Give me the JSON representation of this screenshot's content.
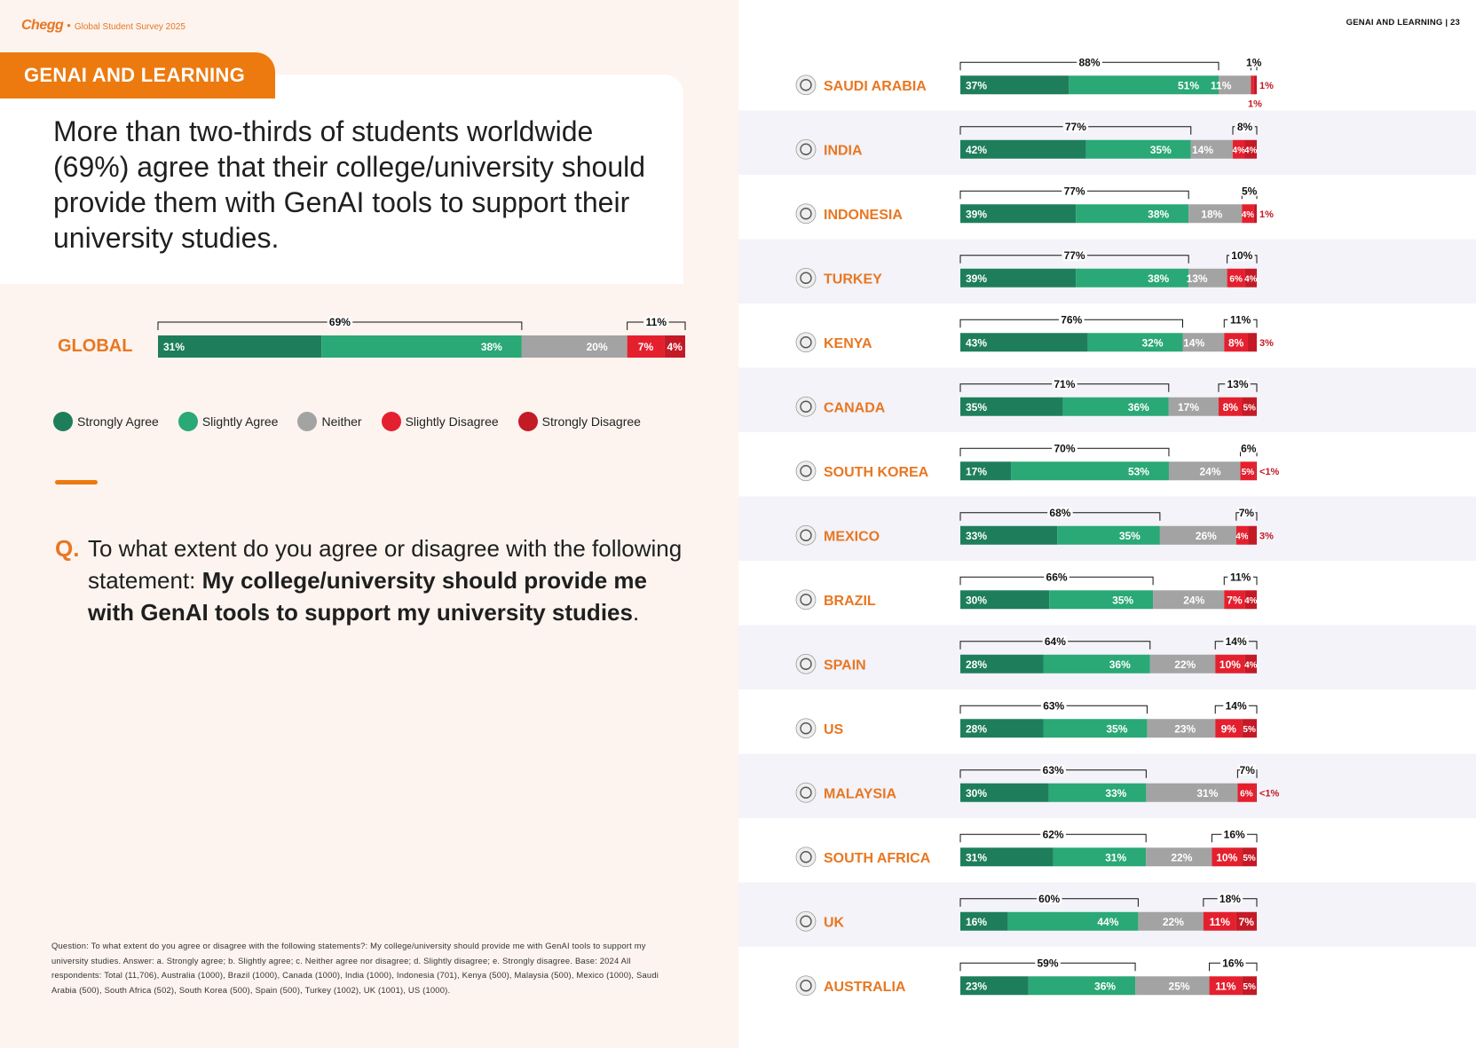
{
  "brand": {
    "logo": "Chegg",
    "separator": "•",
    "survey": "Global Student Survey 2025"
  },
  "section_label": "GENAI AND LEARNING",
  "page_header": {
    "section": "GENAI AND LEARNING",
    "divider": "|",
    "page": "23"
  },
  "headline": "More than two-thirds of students worldwide (69%) agree that their college/university should provide them with GenAI tools to support their university studies.",
  "legend": [
    {
      "label": "Strongly Agree",
      "color": "#1e7e5c"
    },
    {
      "label": "Slightly Agree",
      "color": "#2aa876"
    },
    {
      "label": "Neither",
      "color": "#a3a3a3"
    },
    {
      "label": "Slightly Disagree",
      "color": "#e5202e"
    },
    {
      "label": "Strongly Disagree",
      "color": "#c41a26"
    }
  ],
  "question": {
    "marker": "Q.",
    "lead": "To what extent do you agree or disagree with the following statement: ",
    "bold": "My college/university should provide me with GenAI tools to support my university studies",
    "end": "."
  },
  "footnote": "Question: To what extent do you agree or disagree with the following statements?: My college/university should provide me with GenAI tools to support my university studies. Answer: a. Strongly agree; b. Slightly agree; c. Neither agree nor disagree; d. Slightly disagree; e. Strongly disagree. Base: 2024 All respondents: Total (11,706), Australia (1000), Brazil (1000), Canada (1000), India (1000), Indonesia (701), Kenya (500), Malaysia (500), Mexico (1000), Saudi Arabia (500), South Africa (502), South Korea (500), Spain (500), Turkey (1002), UK (1001), US (1000).",
  "colors": {
    "strongly_agree": "#1e7e5c",
    "slightly_agree": "#2aa876",
    "neither": "#a3a3a3",
    "slightly_disagree": "#e5202e",
    "strongly_disagree": "#c41a26",
    "accent": "#e87722",
    "stripe": "#f3f3f9"
  },
  "chart_data": {
    "type": "bar",
    "orientation": "horizontal-stacked-100",
    "series": [
      "Strongly Agree",
      "Slightly Agree",
      "Neither",
      "Slightly Disagree",
      "Strongly Disagree"
    ],
    "global": {
      "name": "GLOBAL",
      "values": [
        31,
        38,
        20,
        7,
        4
      ],
      "labels": [
        "31%",
        "38%",
        "20%",
        "7%",
        "4%"
      ],
      "agree_total": "69%",
      "disagree_total": "11%"
    },
    "countries": [
      {
        "name": "SAUDI ARABIA",
        "flag": "saudi-arabia-flag-icon",
        "values": [
          37,
          51,
          11,
          1,
          1
        ],
        "labels": [
          "37%",
          "51%",
          "11%",
          "1%",
          "1%"
        ],
        "agree_total": "88%",
        "disagree_total": "1%"
      },
      {
        "name": "INDIA",
        "flag": "india-flag-icon",
        "values": [
          42,
          35,
          14,
          4,
          4
        ],
        "labels": [
          "42%",
          "35%",
          "14%",
          "4%",
          "4%"
        ],
        "agree_total": "77%",
        "disagree_total": "8%"
      },
      {
        "name": "INDONESIA",
        "flag": "indonesia-flag-icon",
        "values": [
          39,
          38,
          18,
          4,
          1
        ],
        "labels": [
          "39%",
          "38%",
          "18%",
          "4%",
          "1%"
        ],
        "agree_total": "77%",
        "disagree_total": "5%"
      },
      {
        "name": "TURKEY",
        "flag": "turkey-flag-icon",
        "values": [
          39,
          38,
          13,
          6,
          4
        ],
        "labels": [
          "39%",
          "38%",
          "13%",
          "6%",
          "4%"
        ],
        "agree_total": "77%",
        "disagree_total": "10%"
      },
      {
        "name": "KENYA",
        "flag": "kenya-flag-icon",
        "values": [
          43,
          32,
          14,
          8,
          3
        ],
        "labels": [
          "43%",
          "32%",
          "14%",
          "8%",
          "3%"
        ],
        "agree_total": "76%",
        "disagree_total": "11%"
      },
      {
        "name": "CANADA",
        "flag": "canada-flag-icon",
        "values": [
          35,
          36,
          17,
          8,
          5
        ],
        "labels": [
          "35%",
          "36%",
          "17%",
          "8%",
          "5%"
        ],
        "agree_total": "71%",
        "disagree_total": "13%"
      },
      {
        "name": "SOUTH KOREA",
        "flag": "south-korea-flag-icon",
        "values": [
          17,
          53,
          24,
          5,
          0.5
        ],
        "labels": [
          "17%",
          "53%",
          "24%",
          "5%",
          "<1%"
        ],
        "agree_total": "70%",
        "disagree_total": "6%"
      },
      {
        "name": "MEXICO",
        "flag": "mexico-flag-icon",
        "values": [
          33,
          35,
          26,
          4,
          3
        ],
        "labels": [
          "33%",
          "35%",
          "26%",
          "4%",
          "3%"
        ],
        "agree_total": "68%",
        "disagree_total": "7%"
      },
      {
        "name": "BRAZIL",
        "flag": "brazil-flag-icon",
        "values": [
          30,
          35,
          24,
          7,
          4
        ],
        "labels": [
          "30%",
          "35%",
          "24%",
          "7%",
          "4%"
        ],
        "agree_total": "66%",
        "disagree_total": "11%"
      },
      {
        "name": "SPAIN",
        "flag": "spain-flag-icon",
        "values": [
          28,
          36,
          22,
          10,
          4
        ],
        "labels": [
          "28%",
          "36%",
          "22%",
          "10%",
          "4%"
        ],
        "agree_total": "64%",
        "disagree_total": "14%"
      },
      {
        "name": "US",
        "flag": "us-flag-icon",
        "values": [
          28,
          35,
          23,
          9,
          5
        ],
        "labels": [
          "28%",
          "35%",
          "23%",
          "9%",
          "5%"
        ],
        "agree_total": "63%",
        "disagree_total": "14%"
      },
      {
        "name": "MALAYSIA",
        "flag": "malaysia-flag-icon",
        "values": [
          30,
          33,
          31,
          6,
          0.5
        ],
        "labels": [
          "30%",
          "33%",
          "31%",
          "6%",
          "<1%"
        ],
        "agree_total": "63%",
        "disagree_total": "7%"
      },
      {
        "name": "SOUTH AFRICA",
        "flag": "south-africa-flag-icon",
        "values": [
          31,
          31,
          22,
          10,
          5
        ],
        "labels": [
          "31%",
          "31%",
          "22%",
          "10%",
          "5%"
        ],
        "agree_total": "62%",
        "disagree_total": "16%"
      },
      {
        "name": "UK",
        "flag": "uk-flag-icon",
        "values": [
          16,
          44,
          22,
          11,
          7
        ],
        "labels": [
          "16%",
          "44%",
          "22%",
          "11%",
          "7%"
        ],
        "agree_total": "60%",
        "disagree_total": "18%"
      },
      {
        "name": "AUSTRALIA",
        "flag": "australia-flag-icon",
        "values": [
          23,
          36,
          25,
          11,
          5
        ],
        "labels": [
          "23%",
          "36%",
          "25%",
          "11%",
          "5%"
        ],
        "agree_total": "59%",
        "disagree_total": "16%"
      }
    ]
  }
}
